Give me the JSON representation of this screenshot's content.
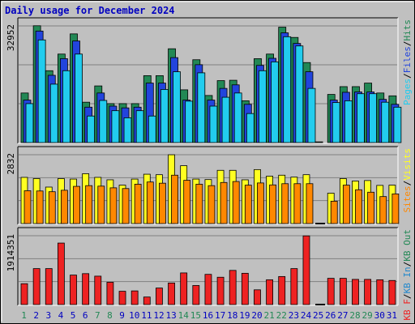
{
  "chart_data": {
    "type": "bar",
    "title": "Daily usage for December 2024",
    "categories": [
      "1",
      "2",
      "3",
      "4",
      "5",
      "6",
      "7",
      "8",
      "9",
      "10",
      "11",
      "12",
      "13",
      "14",
      "15",
      "16",
      "17",
      "18",
      "19",
      "20",
      "21",
      "22",
      "23",
      "24",
      "25",
      "26",
      "27",
      "28",
      "29",
      "30",
      "31"
    ],
    "weekend_days": [
      "1",
      "7",
      "8",
      "14",
      "15",
      "21",
      "22",
      "28",
      "29"
    ],
    "colors": {
      "hits": "#228855",
      "files": "#2244dd",
      "pages": "#22ccee",
      "visits": "#ffff22",
      "sites": "#ff8800",
      "kbin": "#2288cc",
      "kbout": "#228855",
      "kbf": "#ee2222",
      "title": "#0000c0",
      "weekday_label": "#0000c0",
      "weekend_label": "#228855",
      "grid": "#808080",
      "background": "#c0c0c0"
    },
    "panels": [
      {
        "id": "hits-files-pages",
        "max_label": "32952",
        "ylim": [
          0,
          32952
        ],
        "legend": [
          {
            "text": "Pages",
            "color": "#22ccee"
          },
          {
            "text": "/",
            "color": "#000000"
          },
          {
            "text": "Files",
            "color": "#2244dd"
          },
          {
            "text": "/",
            "color": "#000000"
          },
          {
            "text": "Hits",
            "color": "#228855"
          }
        ],
        "series": [
          {
            "name": "Hits",
            "color": "#228855",
            "values": [
              14000,
              33000,
              20300,
              25000,
              30700,
              11400,
              16000,
              11000,
              11000,
              11000,
              18900,
              18900,
              26500,
              14900,
              23400,
              13300,
              17500,
              17600,
              11800,
              23700,
              25000,
              32600,
              29700,
              22600,
              200,
              13600,
              15800,
              15800,
              16800,
              14000,
              13200
            ]
          },
          {
            "name": "Files",
            "color": "#2244dd",
            "values": [
              12000,
              31500,
              19000,
              23700,
              28700,
              10000,
              14000,
              10300,
              9800,
              10000,
              16800,
              16800,
              24000,
              12000,
              22000,
              12000,
              15300,
              16300,
              10800,
              21800,
              23800,
              31000,
              28000,
              20000,
              0,
              12000,
              14200,
              14300,
              14300,
              12200,
              10800
            ]
          },
          {
            "name": "Pages",
            "color": "#22ccee",
            "values": [
              11000,
              29000,
              16500,
              20300,
              25000,
              7500,
              11900,
              9000,
              7000,
              9000,
              7500,
              15000,
              20000,
              11700,
              19700,
              10300,
              12800,
              14000,
              8200,
              20300,
              22800,
              29900,
              27300,
              15300,
              0,
              11300,
              11800,
              13800,
              13800,
              11400,
              10000
            ]
          }
        ]
      },
      {
        "id": "visits-sites",
        "max_label": "2832",
        "ylim": [
          0,
          2832
        ],
        "legend": [
          {
            "text": "Sites",
            "color": "#ff8800"
          },
          {
            "text": "/",
            "color": "#000000"
          },
          {
            "text": "Visits",
            "color": "#ffff22"
          }
        ],
        "series": [
          {
            "name": "Visits",
            "color": "#ffff22",
            "values": [
              1900,
              1850,
              1500,
              1850,
              1830,
              2050,
              1900,
              1800,
              1580,
              1830,
              2030,
              2010,
              2830,
              2380,
              1830,
              1810,
              2190,
              2190,
              1800,
              2220,
              1950,
              1990,
              1910,
              2010,
              0,
              1250,
              1850,
              1750,
              1770,
              1570,
              1580
            ]
          },
          {
            "name": "Sites",
            "color": "#ff8800",
            "values": [
              1350,
              1340,
              1310,
              1370,
              1530,
              1560,
              1540,
              1470,
              1440,
              1620,
              1710,
              1660,
              1990,
              1780,
              1620,
              1560,
              1690,
              1730,
              1580,
              1670,
              1590,
              1640,
              1640,
              1640,
              0,
              920,
              1580,
              1390,
              1290,
              1110,
              1220
            ]
          }
        ]
      },
      {
        "id": "kbytes",
        "max_label": "1914351",
        "ylim": [
          0,
          1914351
        ],
        "legend": [
          {
            "text": "KB F",
            "color": "#ee2222"
          },
          {
            "text": "/",
            "color": "#000000"
          },
          {
            "text": "KB In",
            "color": "#2288cc"
          },
          {
            "text": "/",
            "color": "#000000"
          },
          {
            "text": "KB Out",
            "color": "#228855"
          }
        ],
        "series": [
          {
            "name": "KB F",
            "color": "#ee2222",
            "values": [
              580000,
              1000000,
              1000000,
              1710000,
              820000,
              860000,
              790000,
              620000,
              370000,
              380000,
              210000,
              460000,
              600000,
              880000,
              530000,
              840000,
              760000,
              950000,
              870000,
              410000,
              690000,
              780000,
              1000000,
              1910000,
              0,
              730000,
              730000,
              700000,
              700000,
              690000,
              670000
            ]
          }
        ]
      }
    ]
  }
}
